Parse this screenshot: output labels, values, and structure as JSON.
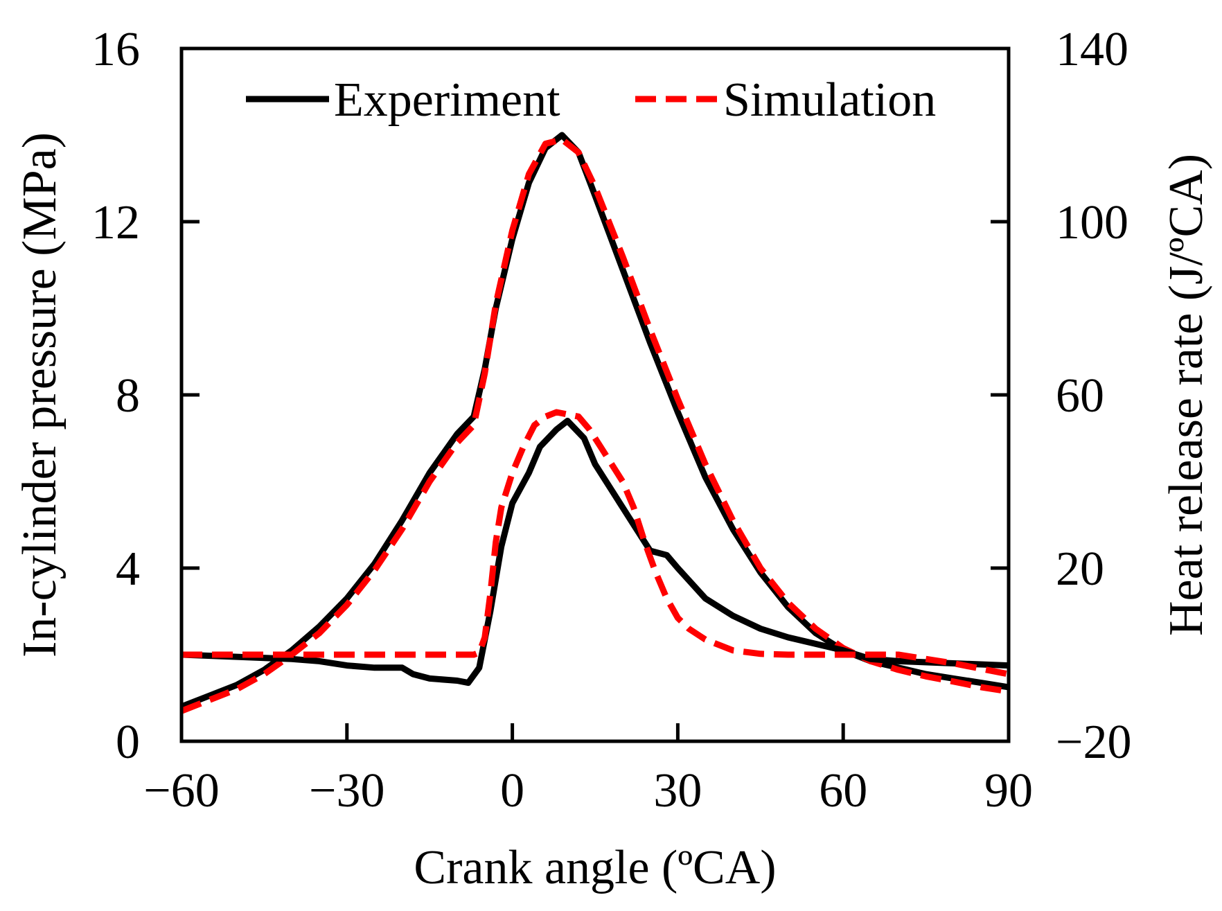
{
  "chart_data": {
    "type": "line",
    "title": "",
    "xlabel": "Crank angle (ºCA)",
    "ylabel_left": "In-cylinder pressure (MPa)",
    "ylabel_right": "Heat release rate (J/ºCA)",
    "xlim": [
      -60,
      90
    ],
    "ylim_left": [
      0,
      16
    ],
    "ylim_right": [
      -20,
      140
    ],
    "x_ticks": [
      -60,
      -30,
      0,
      30,
      60,
      90
    ],
    "x_tick_labels": [
      "−60",
      "−30",
      "0",
      "30",
      "60",
      "90"
    ],
    "y_left_ticks": [
      0,
      4,
      8,
      12,
      16
    ],
    "y_left_tick_labels": [
      "0",
      "4",
      "8",
      "12",
      "16"
    ],
    "y_right_ticks": [
      -20,
      20,
      60,
      100,
      140
    ],
    "y_right_tick_labels": [
      "−20",
      "20",
      "60",
      "100",
      "140"
    ],
    "grid": false,
    "legend_position": "top",
    "legend": [
      {
        "label": "Experiment",
        "color": "#000000",
        "style": "solid"
      },
      {
        "label": "Simulation",
        "color": "#ff0000",
        "style": "dashed"
      }
    ],
    "series": [
      {
        "name": "Experiment pressure",
        "group": "Experiment",
        "axis": "left",
        "color": "#000000",
        "dash": false,
        "x": [
          -60,
          -55,
          -50,
          -45,
          -40,
          -35,
          -30,
          -25,
          -20,
          -15,
          -10,
          -7,
          -5,
          -3,
          0,
          3,
          6,
          9,
          12,
          15,
          20,
          25,
          30,
          35,
          40,
          45,
          50,
          55,
          60,
          65,
          70,
          75,
          80,
          85,
          90
        ],
        "y": [
          0.8,
          1.05,
          1.3,
          1.65,
          2.1,
          2.65,
          3.3,
          4.1,
          5.1,
          6.2,
          7.1,
          7.5,
          8.6,
          10.0,
          11.6,
          12.9,
          13.7,
          14.0,
          13.6,
          12.6,
          10.9,
          9.2,
          7.6,
          6.1,
          4.9,
          3.9,
          3.1,
          2.5,
          2.1,
          1.85,
          1.7,
          1.55,
          1.45,
          1.35,
          1.25
        ]
      },
      {
        "name": "Simulation pressure",
        "group": "Simulation",
        "axis": "left",
        "color": "#ff0000",
        "dash": true,
        "x": [
          -60,
          -55,
          -50,
          -45,
          -40,
          -35,
          -30,
          -25,
          -20,
          -15,
          -10,
          -7,
          -5,
          -3,
          0,
          3,
          6,
          9,
          12,
          15,
          20,
          25,
          30,
          35,
          40,
          45,
          50,
          55,
          60,
          65,
          70,
          75,
          80,
          85,
          90
        ],
        "y": [
          0.7,
          0.95,
          1.2,
          1.55,
          2.0,
          2.5,
          3.15,
          3.95,
          4.9,
          6.0,
          6.9,
          7.3,
          8.5,
          10.1,
          11.8,
          13.1,
          13.8,
          13.9,
          13.6,
          12.8,
          11.2,
          9.5,
          7.9,
          6.4,
          5.1,
          4.0,
          3.2,
          2.6,
          2.15,
          1.85,
          1.65,
          1.5,
          1.38,
          1.25,
          1.15
        ]
      },
      {
        "name": "Experiment heat release rate",
        "group": "Experiment",
        "axis": "right",
        "color": "#000000",
        "dash": false,
        "x": [
          -60,
          -50,
          -40,
          -35,
          -30,
          -25,
          -20,
          -18,
          -15,
          -10,
          -8,
          -6,
          -4,
          -2,
          0,
          3,
          5,
          8,
          10,
          13,
          15,
          18,
          20,
          23,
          25,
          28,
          30,
          35,
          40,
          45,
          50,
          55,
          60,
          65,
          70,
          80,
          90
        ],
        "y": [
          0,
          -0.5,
          -1.0,
          -1.5,
          -2.5,
          -3.0,
          -3.0,
          -4.5,
          -5.5,
          -6.0,
          -6.5,
          -3.0,
          10,
          25,
          35,
          42,
          48,
          52,
          54,
          50,
          44,
          38,
          34,
          28,
          24,
          23,
          20,
          13,
          9,
          6,
          4,
          2.5,
          1.0,
          -1.0,
          -1.5,
          -2.0,
          -2.5
        ]
      },
      {
        "name": "Simulation heat release rate",
        "group": "Simulation",
        "axis": "right",
        "color": "#ff0000",
        "dash": true,
        "x": [
          -60,
          -50,
          -40,
          -30,
          -20,
          -10,
          -8,
          -7,
          -6,
          -5,
          -4,
          -3,
          -2,
          0,
          2,
          4,
          6,
          8,
          10,
          12,
          14,
          16,
          18,
          20,
          22,
          24,
          26,
          28,
          30,
          32,
          35,
          40,
          45,
          50,
          60,
          70,
          80,
          90
        ],
        "y": [
          0,
          0,
          0,
          0,
          0,
          0,
          0,
          0,
          0.5,
          4,
          14,
          26,
          34,
          42,
          48,
          53,
          55,
          56,
          55.5,
          55,
          52,
          48,
          44,
          40,
          34,
          26,
          19,
          13,
          8.5,
          6,
          3.5,
          1.0,
          0.2,
          0,
          0,
          0,
          -2.0,
          -4.5
        ]
      }
    ]
  }
}
